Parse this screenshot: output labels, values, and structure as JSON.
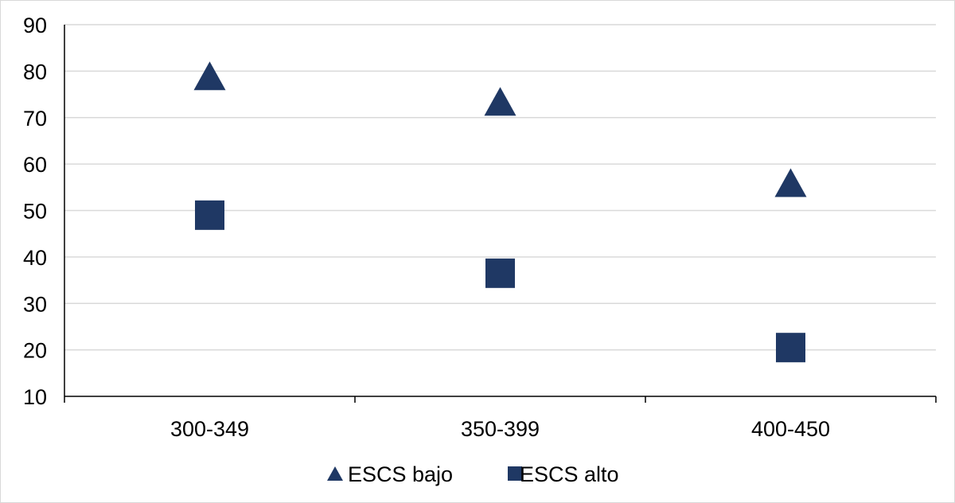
{
  "chart_data": {
    "type": "scatter",
    "categories": [
      "300-349",
      "350-399",
      "400-450"
    ],
    "series": [
      {
        "name": "ESCS bajo",
        "marker": "triangle",
        "values": [
          79,
          73.5,
          56
        ]
      },
      {
        "name": "ESCS alto",
        "marker": "square",
        "values": [
          49,
          36.5,
          20.5
        ]
      }
    ],
    "ylim": [
      10,
      90
    ],
    "yticks": [
      10,
      20,
      30,
      40,
      50,
      60,
      70,
      80,
      90
    ],
    "grid": true,
    "legend_position": "bottom",
    "colors": {
      "marker": "#1f3864",
      "grid": "#d9d9d9",
      "axis": "#000000"
    }
  }
}
